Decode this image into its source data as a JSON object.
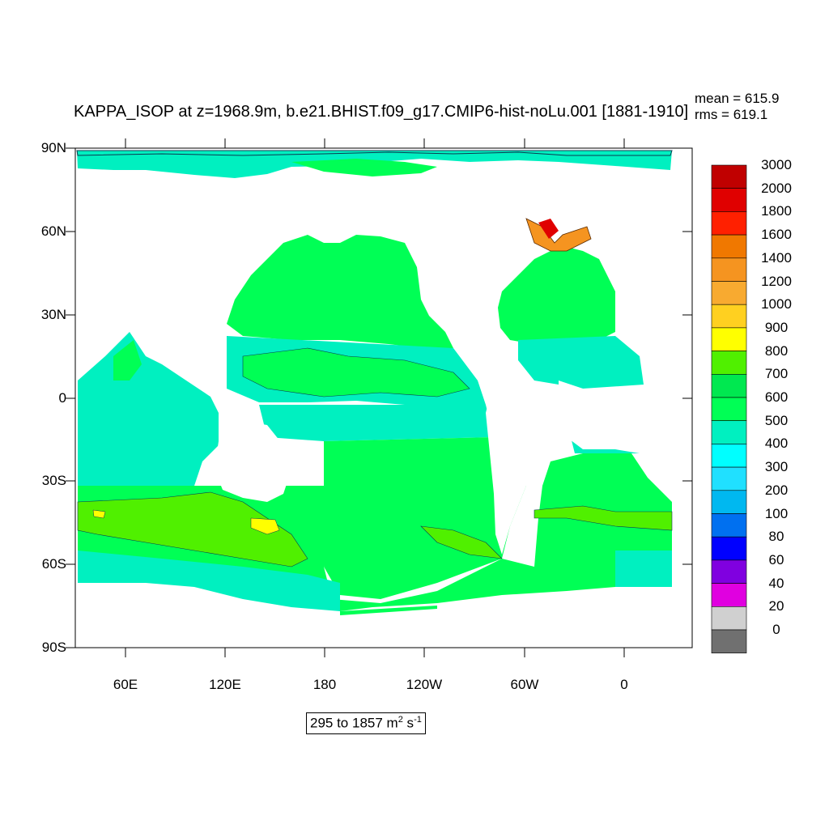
{
  "title": "KAPPA_ISOP at z=1968.9m, b.e21.BHIST.f09_g17.CMIP6-hist-noLu.001 [1881-1910]",
  "stats": {
    "mean": "mean = 615.9",
    "rms": "rms = 619.1"
  },
  "range_label": {
    "prefix": "295 to 1857 m",
    "unit_exp1": "2",
    "mid": " s",
    "unit_exp2": "-1"
  },
  "axes": {
    "y_ticks": [
      "90N",
      "60N",
      "30N",
      "0",
      "30S",
      "60S",
      "90S"
    ],
    "x_ticks": [
      "60E",
      "120E",
      "180",
      "120W",
      "60W",
      "0"
    ]
  },
  "colorbar": {
    "labels": [
      "3000",
      "2000",
      "1800",
      "1600",
      "1400",
      "1200",
      "1000",
      "900",
      "800",
      "700",
      "600",
      "500",
      "400",
      "300",
      "200",
      "100",
      "80",
      "60",
      "40",
      "20",
      "0"
    ],
    "colors": [
      "#c00000",
      "#e00000",
      "#ff2000",
      "#f07800",
      "#f59420",
      "#f8aa30",
      "#ffd020",
      "#ffff00",
      "#50f000",
      "#00e850",
      "#00ff55",
      "#00f0c0",
      "#00ffff",
      "#20e0ff",
      "#00b8f0",
      "#0070f0",
      "#0000ff",
      "#8000e0",
      "#e000e0",
      "#d0d0d0",
      "#707070"
    ]
  }
}
